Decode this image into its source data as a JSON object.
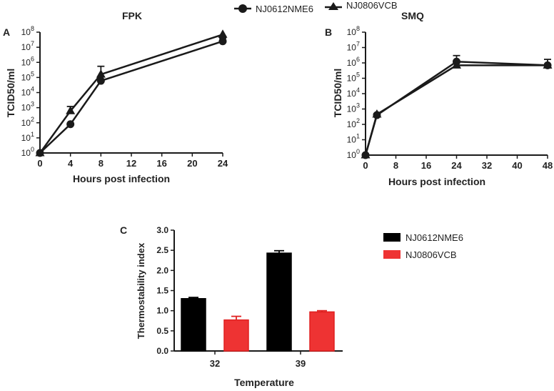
{
  "legend_top": {
    "items": [
      {
        "label": "NJ0612NME6",
        "marker": "circle"
      },
      {
        "label": "NJ0806VCB",
        "marker": "triangle"
      }
    ]
  },
  "colors": {
    "line": "#1a1a1a",
    "black_bar": "#000000",
    "red_bar": "#ee3333",
    "red_edge": "#e02020"
  },
  "chart_data": [
    {
      "panel": "A",
      "type": "line",
      "title": "FPK",
      "xlabel": "Hours post infection",
      "ylabel": "TCID50/ml",
      "xlim": [
        0,
        24
      ],
      "xticks": [
        0,
        4,
        8,
        12,
        16,
        20,
        24
      ],
      "ylim_log10": [
        0,
        8
      ],
      "yticks_exp": [
        0,
        1,
        2,
        3,
        4,
        5,
        6,
        7,
        8
      ],
      "series": [
        {
          "name": "NJ0612NME6",
          "marker": "circle",
          "x": [
            0,
            4,
            8,
            24
          ],
          "y": [
            1,
            80,
            60000,
            25000000
          ],
          "err_up": [
            1,
            80,
            110000,
            40000000
          ]
        },
        {
          "name": "NJ0806VCB",
          "marker": "triangle",
          "x": [
            0,
            4,
            8,
            24
          ],
          "y": [
            1,
            600,
            160000,
            70000000
          ],
          "err_up": [
            1,
            1200,
            550000,
            70000000
          ]
        }
      ]
    },
    {
      "panel": "B",
      "type": "line",
      "title": "SMQ",
      "xlabel": "Hours post infection",
      "ylabel": "TCID50/ml",
      "xlim": [
        0,
        48
      ],
      "xticks": [
        0,
        8,
        16,
        24,
        32,
        40,
        48
      ],
      "ylim_log10": [
        0,
        8
      ],
      "yticks_exp": [
        0,
        1,
        2,
        3,
        4,
        5,
        6,
        7,
        8
      ],
      "series": [
        {
          "name": "NJ0612NME6",
          "marker": "circle",
          "x": [
            0,
            3,
            24,
            48
          ],
          "y": [
            1,
            400,
            1200000,
            700000
          ],
          "err_up": [
            1,
            500,
            3000000,
            1700000
          ]
        },
        {
          "name": "NJ0806VCB",
          "marker": "triangle",
          "x": [
            0,
            3,
            24,
            48
          ],
          "y": [
            1,
            450,
            700000,
            700000
          ],
          "err_up": [
            1,
            500,
            700000,
            700000
          ]
        }
      ]
    },
    {
      "panel": "C",
      "type": "bar",
      "xlabel": "Temperature",
      "ylabel": "Thermostability index",
      "categories": [
        "32",
        "39"
      ],
      "ylim": [
        0,
        3.0
      ],
      "yticks": [
        "0.0",
        "0.5",
        "1.0",
        "1.5",
        "2.0",
        "2.5",
        "3.0"
      ],
      "series": [
        {
          "name": "NJ0612NME6",
          "color": "black",
          "values": [
            1.3,
            2.43
          ],
          "errors": [
            0.03,
            0.06
          ]
        },
        {
          "name": "NJ0806VCB",
          "color": "red",
          "values": [
            0.77,
            0.97
          ],
          "errors": [
            0.09,
            0.03
          ]
        }
      ]
    }
  ]
}
